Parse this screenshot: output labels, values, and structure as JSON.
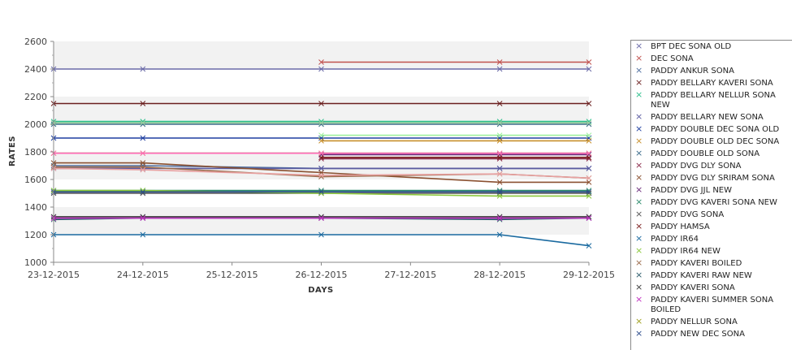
{
  "chart_data": {
    "type": "line",
    "title": "",
    "xlabel": "DAYS",
    "ylabel": "RATES",
    "categories": [
      "23-12-2015",
      "24-12-2015",
      "25-12-2015",
      "26-12-2015",
      "27-12-2015",
      "28-12-2015",
      "29-12-2015"
    ],
    "ylim": [
      1000,
      2600
    ],
    "yticks": [
      1000,
      1200,
      1400,
      1600,
      1800,
      2000,
      2200,
      2400,
      2600
    ],
    "grid": "alternating horizontal bands",
    "legend_position": "right",
    "series": [
      {
        "name": "BPT DEC SONA OLD",
        "color": "#6a6aa8",
        "points": [
          [
            "23-12-2015",
            2400
          ],
          [
            "24-12-2015",
            2400
          ],
          [
            "26-12-2015",
            2400
          ],
          [
            "28-12-2015",
            2400
          ],
          [
            "29-12-2015",
            2400
          ]
        ]
      },
      {
        "name": "DEC SONA",
        "color": "#c0504d",
        "points": [
          [
            "26-12-2015",
            2450
          ],
          [
            "28-12-2015",
            2450
          ],
          [
            "29-12-2015",
            2450
          ]
        ]
      },
      {
        "name": "PADDY ANKUR SONA",
        "color": "#4f6fa0",
        "points": [
          [
            "23-12-2015",
            1700
          ],
          [
            "24-12-2015",
            1700
          ],
          [
            "26-12-2015",
            1680
          ],
          [
            "28-12-2015",
            1680
          ],
          [
            "29-12-2015",
            1680
          ]
        ]
      },
      {
        "name": "PADDY BELLARY KAVERI SONA",
        "color": "#6b1f1f",
        "points": [
          [
            "23-12-2015",
            2150
          ],
          [
            "24-12-2015",
            2150
          ],
          [
            "26-12-2015",
            2150
          ],
          [
            "28-12-2015",
            2150
          ],
          [
            "29-12-2015",
            2150
          ]
        ]
      },
      {
        "name": "PADDY BELLARY NELLUR SONA NEW",
        "color": "#2bbf8c",
        "points": [
          [
            "23-12-2015",
            2020
          ],
          [
            "24-12-2015",
            2020
          ],
          [
            "26-12-2015",
            2020
          ],
          [
            "28-12-2015",
            2020
          ],
          [
            "29-12-2015",
            2020
          ]
        ]
      },
      {
        "name": "PADDY BELLARY NEW SONA",
        "color": "#5a5aa0",
        "points": [
          [
            "23-12-2015",
            1680
          ],
          [
            "24-12-2015",
            1680
          ],
          [
            "26-12-2015",
            1680
          ],
          [
            "28-12-2015",
            1680
          ],
          [
            "29-12-2015",
            1680
          ]
        ]
      },
      {
        "name": "PADDY DOUBLE DEC SONA OLD",
        "color": "#1f3fa0",
        "points": [
          [
            "23-12-2015",
            1900
          ],
          [
            "24-12-2015",
            1900
          ],
          [
            "26-12-2015",
            1900
          ],
          [
            "28-12-2015",
            1900
          ],
          [
            "29-12-2015",
            1900
          ]
        ]
      },
      {
        "name": "PADDY DOUBLE OLD DEC SONA",
        "color": "#c8902c",
        "points": [
          [
            "26-12-2015",
            1880
          ],
          [
            "28-12-2015",
            1880
          ],
          [
            "29-12-2015",
            1880
          ]
        ]
      },
      {
        "name": "PADDY DOUBLE OLD SONA",
        "color": "#3a6a8a",
        "points": [
          [
            "23-12-2015",
            2000
          ],
          [
            "24-12-2015",
            2000
          ],
          [
            "26-12-2015",
            2000
          ],
          [
            "28-12-2015",
            2000
          ],
          [
            "29-12-2015",
            2000
          ]
        ]
      },
      {
        "name": "PADDY DVG DLY SONA",
        "color": "#8a2a4a",
        "points": [
          [
            "26-12-2015",
            1750
          ],
          [
            "28-12-2015",
            1750
          ],
          [
            "29-12-2015",
            1750
          ]
        ]
      },
      {
        "name": "PADDY DVG DLY SRIRAM SONA",
        "color": "#8a5030",
        "points": [
          [
            "23-12-2015",
            1720
          ],
          [
            "24-12-2015",
            1720
          ],
          [
            "26-12-2015",
            1650
          ],
          [
            "28-12-2015",
            1580
          ],
          [
            "29-12-2015",
            1580
          ]
        ]
      },
      {
        "name": "PADDY DVG JJL NEW",
        "color": "#6a2a7a",
        "points": [
          [
            "26-12-2015",
            1780
          ],
          [
            "28-12-2015",
            1780
          ],
          [
            "29-12-2015",
            1780
          ]
        ]
      },
      {
        "name": "PADDY DVG KAVERI SONA NEW",
        "color": "#2a8a6a",
        "points": [
          [
            "23-12-2015",
            1520
          ],
          [
            "24-12-2015",
            1520
          ],
          [
            "26-12-2015",
            1520
          ],
          [
            "28-12-2015",
            1520
          ],
          [
            "29-12-2015",
            1520
          ]
        ]
      },
      {
        "name": "PADDY DVG SONA",
        "color": "#555555",
        "points": [
          [
            "23-12-2015",
            1500
          ],
          [
            "24-12-2015",
            1500
          ],
          [
            "26-12-2015",
            1500
          ],
          [
            "28-12-2015",
            1500
          ],
          [
            "29-12-2015",
            1500
          ]
        ]
      },
      {
        "name": "PADDY HAMSA",
        "color": "#7a1a1a",
        "points": [
          [
            "26-12-2015",
            1760
          ],
          [
            "28-12-2015",
            1760
          ],
          [
            "29-12-2015",
            1760
          ]
        ]
      },
      {
        "name": "PADDY IR64",
        "color": "#1a6aa0",
        "points": [
          [
            "23-12-2015",
            1200
          ],
          [
            "24-12-2015",
            1200
          ],
          [
            "26-12-2015",
            1200
          ],
          [
            "28-12-2015",
            1200
          ],
          [
            "29-12-2015",
            1120
          ]
        ]
      },
      {
        "name": "PADDY IR64 NEW",
        "color": "#8ac83a",
        "points": [
          [
            "23-12-2015",
            1520
          ],
          [
            "24-12-2015",
            1520
          ],
          [
            "26-12-2015",
            1500
          ],
          [
            "28-12-2015",
            1480
          ],
          [
            "29-12-2015",
            1480
          ]
        ]
      },
      {
        "name": "PADDY KAVERI BOILED",
        "color": "#9a6a4a",
        "points": [
          [
            "23-12-2015",
            1690
          ],
          [
            "24-12-2015",
            1690
          ],
          [
            "26-12-2015",
            1620
          ],
          [
            "28-12-2015",
            1640
          ],
          [
            "29-12-2015",
            1610
          ]
        ]
      },
      {
        "name": "PADDY KAVERI RAW NEW",
        "color": "#2a5a6a",
        "points": [
          [
            "23-12-2015",
            1310
          ],
          [
            "24-12-2015",
            1320
          ],
          [
            "26-12-2015",
            1320
          ],
          [
            "28-12-2015",
            1310
          ],
          [
            "29-12-2015",
            1320
          ]
        ]
      },
      {
        "name": "PADDY KAVERI SONA",
        "color": "#3a3a3a",
        "points": [
          [
            "23-12-2015",
            1330
          ],
          [
            "24-12-2015",
            1330
          ],
          [
            "26-12-2015",
            1330
          ],
          [
            "28-12-2015",
            1330
          ],
          [
            "29-12-2015",
            1330
          ]
        ]
      },
      {
        "name": "PADDY KAVERI SUMMER SONA BOILED",
        "color": "#c030c0",
        "points": [
          [
            "23-12-2015",
            1320
          ],
          [
            "24-12-2015",
            1320
          ],
          [
            "26-12-2015",
            1320
          ],
          [
            "28-12-2015",
            1320
          ],
          [
            "29-12-2015",
            1320
          ]
        ]
      },
      {
        "name": "PADDY NELLUR SONA",
        "color": "#a0a020",
        "points": [
          [
            "23-12-2015",
            1790
          ],
          [
            "24-12-2015",
            1790
          ],
          [
            "26-12-2015",
            1790
          ],
          [
            "28-12-2015",
            1790
          ],
          [
            "29-12-2015",
            1790
          ]
        ]
      },
      {
        "name": "PADDY NEW DEC SONA",
        "color": "#2a4a8a",
        "points": [
          [
            "23-12-2015",
            1510
          ],
          [
            "24-12-2015",
            1510
          ],
          [
            "26-12-2015",
            1510
          ],
          [
            "28-12-2015",
            1510
          ],
          [
            "29-12-2015",
            1510
          ]
        ]
      },
      {
        "name": "",
        "color": "#e8a0a0",
        "points": [
          [
            "23-12-2015",
            1680
          ],
          [
            "24-12-2015",
            1670
          ],
          [
            "26-12-2015",
            1630
          ],
          [
            "28-12-2015",
            1640
          ],
          [
            "29-12-2015",
            1610
          ]
        ]
      },
      {
        "name": "",
        "color": "#ff69b4",
        "points": [
          [
            "23-12-2015",
            1790
          ],
          [
            "24-12-2015",
            1790
          ],
          [
            "26-12-2015",
            1790
          ],
          [
            "28-12-2015",
            1790
          ],
          [
            "29-12-2015",
            1790
          ]
        ]
      },
      {
        "name": "",
        "color": "#9ef09e",
        "points": [
          [
            "26-12-2015",
            1920
          ],
          [
            "28-12-2015",
            1920
          ],
          [
            "29-12-2015",
            1920
          ]
        ]
      },
      {
        "name": "",
        "color": "#a0d0a0",
        "points": [
          [
            "23-12-2015",
            2010
          ],
          [
            "24-12-2015",
            2010
          ],
          [
            "26-12-2015",
            2010
          ],
          [
            "28-12-2015",
            2010
          ],
          [
            "29-12-2015",
            2010
          ]
        ]
      }
    ]
  }
}
